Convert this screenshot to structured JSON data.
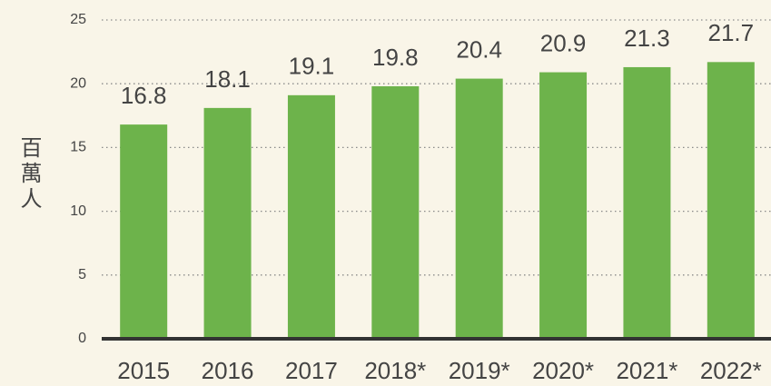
{
  "chart_data": {
    "type": "bar",
    "y_label": "百萬人",
    "categories": [
      "2015",
      "2016",
      "2017",
      "2018*",
      "2019*",
      "2020*",
      "2021*",
      "2022*"
    ],
    "values": [
      16.8,
      18.1,
      19.1,
      19.8,
      20.4,
      20.9,
      21.3,
      21.7
    ],
    "color": "#6db34b",
    "ylim": [
      0,
      25
    ],
    "yticks": [
      0,
      5,
      10,
      15,
      20,
      25
    ],
    "grid": true
  }
}
